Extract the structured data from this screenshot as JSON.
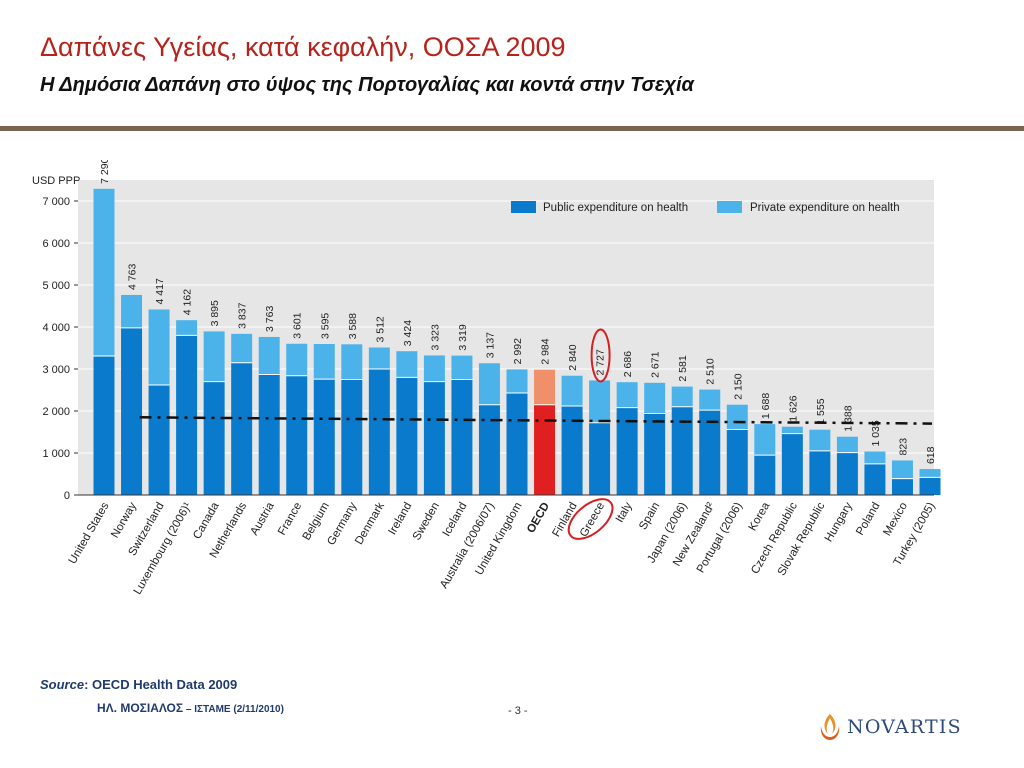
{
  "slide": {
    "title": "Δαπάνες Υγείας, κατά κεφαλήν, ΟΟΣΑ 2009",
    "subtitle": "Η Δημόσια Δαπάνη στο ύψος της Πορτογαλίας και κοντά στην Τσεχία",
    "source_label": "Source",
    "source_text": ": OECD Health Data 2009",
    "author": "ΗΛ. ΜΟΣΙΑΛΟΣ",
    "author_note": " – ΙΣΤΑΜΕ (2/11/2010)",
    "page": "- 3 -",
    "logo_text": "NOVARTIS"
  },
  "colors": {
    "title": "#b5231c",
    "public": "#0a7bcc",
    "private": "#4cb3ea",
    "oecd_public": "#e02020",
    "oecd_private": "#f0906a",
    "plot_bg": "#e6e6e6",
    "highlight": "#d42020",
    "divider": "#7a6552"
  },
  "chart_data": {
    "type": "bar",
    "stacked": true,
    "ylabel": "USD PPP",
    "ylim": [
      0,
      7500
    ],
    "yticks": [
      0,
      1000,
      2000,
      3000,
      4000,
      5000,
      6000,
      7000
    ],
    "ytick_labels": [
      "0",
      "1 000",
      "2 000",
      "3 000",
      "4 000",
      "5 000",
      "6 000",
      "7 000"
    ],
    "grid": true,
    "legend_position": "top-right",
    "categories": [
      "United States",
      "Norway",
      "Switzerland",
      "Luxembourg (2006)¹",
      "Canada",
      "Netherlands",
      "Austria",
      "France",
      "Belgium",
      "Germany",
      "Denmark",
      "Ireland",
      "Sweden",
      "Iceland",
      "Australia (2006/07)",
      "United Kingdom",
      "OECD",
      "Finland",
      "Greece",
      "Italy",
      "Spain",
      "Japan (2006)",
      "New Zealand²",
      "Portugal (2006)",
      "Korea",
      "Czech Republic",
      "Slovak Republic",
      "Hungary",
      "Poland",
      "Mexico",
      "Turkey (2005)"
    ],
    "totals": [
      7290,
      4763,
      4417,
      4162,
      3895,
      3837,
      3763,
      3601,
      3595,
      3588,
      3512,
      3424,
      3323,
      3319,
      3137,
      2992,
      2984,
      2840,
      2727,
      2686,
      2671,
      2581,
      2510,
      2150,
      1688,
      1626,
      1555,
      1388,
      1035,
      823,
      618
    ],
    "total_labels": [
      "7 290",
      "4 763",
      "4 417",
      "4 162",
      "3 895",
      "3 837",
      "3 763",
      "3 601",
      "3 595",
      "3 588",
      "3 512",
      "3 424",
      "3 323",
      "3 319",
      "3 137",
      "2 992",
      "2 984",
      "2 840",
      "2 727",
      "2 686",
      "2 671",
      "2 581",
      "2 510",
      "2 150",
      "1 688",
      "1 626",
      "1 555",
      "1 388",
      "1 035",
      "823",
      "618"
    ],
    "series": [
      {
        "name": "Public expenditure on health",
        "values": [
          3310,
          3980,
          2620,
          3800,
          2700,
          3150,
          2870,
          2840,
          2760,
          2750,
          3000,
          2800,
          2700,
          2750,
          2150,
          2430,
          2150,
          2120,
          1720,
          2080,
          1940,
          2100,
          2020,
          1560,
          950,
          1460,
          1050,
          1010,
          740,
          390,
          420
        ]
      },
      {
        "name": "Private expenditure on health",
        "values": [
          3980,
          783,
          1797,
          362,
          1195,
          687,
          893,
          761,
          835,
          838,
          512,
          624,
          623,
          569,
          987,
          562,
          834,
          720,
          1007,
          606,
          731,
          481,
          490,
          590,
          738,
          166,
          505,
          378,
          295,
          433,
          198
        ]
      }
    ],
    "reference_line": {
      "value": 1850,
      "end_value": 1700,
      "label": ""
    },
    "highlight_category": "Greece",
    "emphasis_category": "OECD"
  }
}
